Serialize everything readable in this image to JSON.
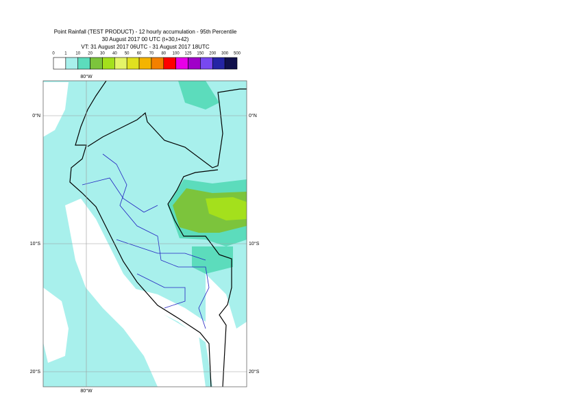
{
  "header": {
    "lines": [
      "Point Rainfall (TEST PRODUCT) - 12 hourly accumulation - 95th Percentile",
      "30 August 2017 00 UTC (t+30,t+42)",
      "VT: 31 August 2017 06UTC - 31 August 2017 18UTC"
    ]
  },
  "legend": {
    "labels": [
      0,
      1,
      10,
      20,
      30,
      40,
      50,
      60,
      70,
      80,
      100,
      125,
      150,
      200,
      300,
      500
    ],
    "colors": [
      "#ffffff",
      "#a8f0ec",
      "#5cdcbc",
      "#7cc43c",
      "#a4e01c",
      "#e4f468",
      "#e0e020",
      "#f4b400",
      "#f48000",
      "#ff0000",
      "#e800e8",
      "#a000c8",
      "#7848f0",
      "#2424a4",
      "#10104c"
    ]
  },
  "map": {
    "lon_labels": [
      "80°W"
    ],
    "lat_labels": [
      "0°N",
      "10°S",
      "20°S"
    ]
  }
}
